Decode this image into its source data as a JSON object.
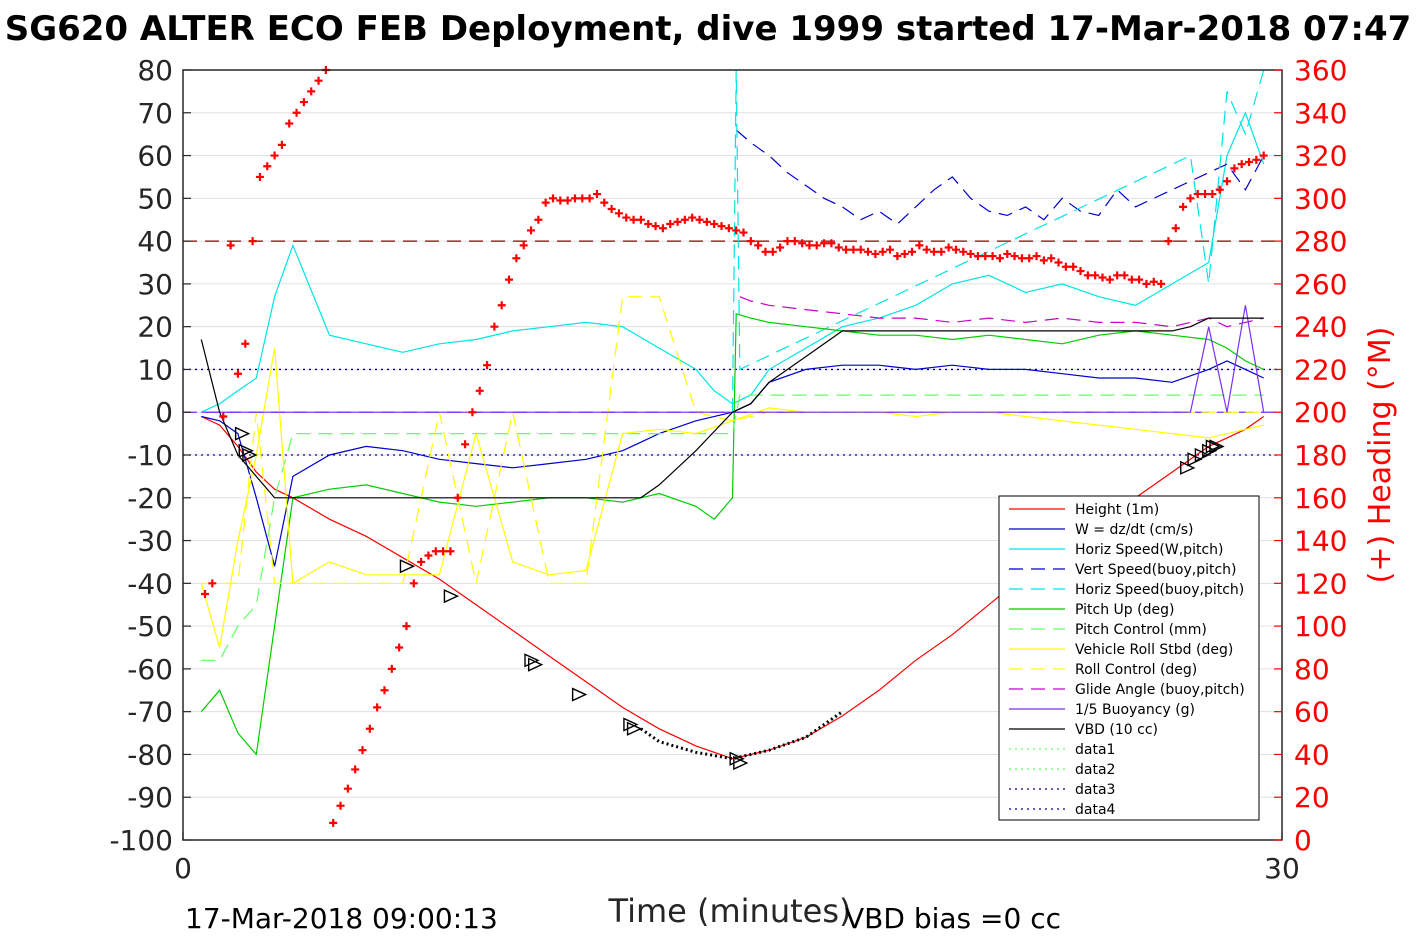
{
  "chart_data": {
    "type": "line",
    "title": "SG620 ALTER ECO FEB Deployment, dive 1999 started 17-Mar-2018 07:47",
    "xlabel": "Time (minutes)",
    "ylabel_right": "(+) Heading (°M)",
    "xlim": [
      0,
      30
    ],
    "ylim_left": [
      -100,
      80
    ],
    "ylim_right": [
      0,
      360
    ],
    "x_ticks": [
      "0",
      "30"
    ],
    "y_ticks_left": [
      "80",
      "70",
      "60",
      "50",
      "40",
      "30",
      "20",
      "10",
      "0",
      "-10",
      "-20",
      "-30",
      "-40",
      "-50",
      "-60",
      "-70",
      "-80",
      "-90",
      "-100"
    ],
    "y_ticks_right": [
      "360",
      "340",
      "320",
      "300",
      "280",
      "260",
      "240",
      "220",
      "200",
      "180",
      "160",
      "140",
      "120",
      "100",
      "80",
      "60",
      "40",
      "20",
      "0"
    ],
    "grid": true,
    "legend_position": "lower-right",
    "footer_left": "17-Mar-2018 09:00:13",
    "footer_right": "VBD bias =0 cc",
    "colors": {
      "red": "#ff0000",
      "blue": "#0000cc",
      "cyan": "#00e5e5",
      "green": "#00cc00",
      "yellow": "#ffff00",
      "magenta": "#cc00cc",
      "black": "#000000",
      "dark_red": "#8b0000",
      "light_green": "#66ff66",
      "navy": "#000080",
      "purple": "#7b2ff7"
    },
    "series": [
      {
        "name": "Height (1m)",
        "color": "red",
        "style": "solid",
        "x": [
          0.5,
          1,
          1.5,
          2,
          2.5,
          3,
          4,
          5,
          6,
          7,
          8,
          9,
          10,
          11,
          12,
          13,
          14,
          15,
          16,
          17,
          18,
          19,
          20,
          21,
          22,
          23,
          24,
          25,
          26,
          27,
          27.5,
          28,
          28.5,
          29,
          29.5
        ],
        "y": [
          -1,
          -3,
          -8,
          -14,
          -18,
          -20,
          -25,
          -29,
          -34,
          -39,
          -45,
          -51,
          -57,
          -63,
          -69,
          -74,
          -78,
          -81,
          -79,
          -76,
          -71,
          -65,
          -58,
          -52,
          -45,
          -38,
          -31,
          -26,
          -20,
          -14,
          -11,
          -8,
          -6,
          -4,
          -1
        ]
      },
      {
        "name": "W = dz/dt (cm/s)",
        "color": "blue",
        "style": "solid",
        "x": [
          0.5,
          1,
          1.5,
          2,
          2.5,
          3,
          4,
          5,
          6,
          7,
          8,
          9,
          10,
          11,
          12,
          13,
          14,
          15,
          15.5,
          16,
          17,
          18,
          19,
          20,
          21,
          22,
          23,
          24,
          25,
          26,
          27,
          28,
          28.5,
          29,
          29.5
        ],
        "y": [
          -1,
          -2,
          -5,
          -20,
          -36,
          -15,
          -10,
          -8,
          -9,
          -11,
          -12,
          -13,
          -12,
          -11,
          -9,
          -5,
          -2,
          0,
          2,
          7,
          10,
          11,
          11,
          10,
          11,
          10,
          10,
          9,
          8,
          8,
          7,
          10,
          12,
          10,
          8
        ]
      },
      {
        "name": "Horiz Speed(W,pitch)",
        "color": "cyan",
        "style": "solid",
        "x": [
          0.5,
          1,
          1.5,
          2,
          2.5,
          3,
          4,
          5,
          6,
          7,
          8,
          9,
          10,
          11,
          12,
          13,
          14,
          14.5,
          15,
          15.5,
          16,
          17,
          18,
          19,
          20,
          21,
          22,
          23,
          24,
          25,
          26,
          27,
          28,
          28.5,
          29,
          29.5
        ],
        "y": [
          0,
          2,
          5,
          8,
          27,
          39,
          18,
          16,
          14,
          16,
          17,
          19,
          20,
          21,
          20,
          15,
          10,
          5,
          2,
          4,
          10,
          15,
          20,
          22,
          25,
          30,
          32,
          28,
          30,
          27,
          25,
          30,
          35,
          60,
          70,
          58
        ]
      },
      {
        "name": "Vert Speed(buoy,pitch)",
        "color": "blue",
        "style": "dashed",
        "x": [
          15.1,
          15.5,
          16,
          16.5,
          17,
          17.5,
          18,
          18.5,
          19,
          19.5,
          20,
          20.5,
          21,
          21.5,
          22,
          22.5,
          23,
          23.5,
          24,
          24.5,
          25,
          25.5,
          26,
          26.5,
          27,
          27.5,
          28,
          28.5,
          29,
          29.5
        ],
        "y": [
          66,
          63,
          60,
          56,
          53,
          50,
          48,
          45,
          47,
          44,
          48,
          52,
          55,
          50,
          47,
          46,
          48,
          45,
          50,
          47,
          46,
          52,
          48,
          50,
          52,
          54,
          56,
          58,
          52,
          60
        ]
      },
      {
        "name": "Horiz Speed(buoy,pitch)",
        "color": "cyan",
        "style": "dashed",
        "x": [
          15,
          15.1,
          15.2,
          27.5,
          28,
          28.5,
          29,
          29.5
        ],
        "y": [
          0,
          80,
          10,
          60,
          30,
          75,
          65,
          80
        ]
      },
      {
        "name": "Pitch Up (deg)",
        "color": "green",
        "style": "solid",
        "x": [
          0.5,
          1,
          1.5,
          2,
          2.5,
          3,
          4,
          5,
          6,
          7,
          8,
          9,
          10,
          11,
          12,
          13,
          14,
          14.5,
          15,
          15.1,
          15.5,
          16,
          17,
          18,
          19,
          20,
          21,
          22,
          23,
          24,
          25,
          26,
          27,
          28,
          28.5,
          29,
          29.5
        ],
        "y": [
          -70,
          -65,
          -75,
          -80,
          -50,
          -20,
          -18,
          -17,
          -19,
          -21,
          -22,
          -21,
          -20,
          -20,
          -21,
          -19,
          -22,
          -25,
          -20,
          23,
          22,
          21,
          20,
          19,
          18,
          18,
          17,
          18,
          17,
          16,
          18,
          19,
          18,
          17,
          15,
          12,
          10
        ]
      },
      {
        "name": "Pitch Control (mm)",
        "color": "light_green",
        "style": "dashed",
        "x": [
          0.5,
          1,
          1.5,
          2,
          2.5,
          3,
          14.5,
          15,
          15.2,
          28,
          29.5
        ],
        "y": [
          -58,
          -58,
          -50,
          -45,
          -20,
          -5,
          -5,
          -5,
          4,
          4,
          4
        ]
      },
      {
        "name": "Vehicle Roll Stbd (deg)",
        "color": "yellow",
        "style": "solid",
        "x": [
          0.5,
          1,
          1.5,
          2,
          2.5,
          3,
          4,
          5,
          6,
          7,
          8,
          9,
          10,
          11,
          12,
          13,
          14,
          15,
          16,
          17,
          18,
          19,
          20,
          21,
          22,
          23,
          24,
          25,
          26,
          27,
          28,
          29,
          29.5
        ],
        "y": [
          -40,
          -55,
          -30,
          -10,
          15,
          -40,
          -35,
          -38,
          -38,
          -38,
          -5,
          -35,
          -38,
          -37,
          -5,
          -4,
          -5,
          -2,
          1,
          0,
          0,
          0,
          -1,
          0,
          0,
          -1,
          -2,
          -3,
          -4,
          -5,
          -6,
          -4,
          -3
        ]
      },
      {
        "name": "Roll Control (deg)",
        "color": "yellow",
        "style": "dashed",
        "x": [
          0.5,
          1,
          1.5,
          2,
          2.5,
          3,
          4,
          5,
          6,
          7,
          8,
          9,
          10,
          11,
          12,
          13,
          14,
          15,
          16,
          28,
          29.5
        ],
        "y": [
          -40,
          -40,
          -40,
          0,
          -40,
          -40,
          -40,
          -40,
          -40,
          0,
          -40,
          0,
          -40,
          -40,
          27,
          27,
          0,
          -2,
          0,
          0,
          0
        ]
      },
      {
        "name": "Glide Angle (buoy,pitch)",
        "color": "magenta",
        "style": "dashed",
        "x": [
          15.2,
          15.5,
          16,
          17,
          18,
          19,
          20,
          21,
          22,
          23,
          24,
          25,
          26,
          27,
          28,
          28.5,
          29,
          29.5
        ],
        "y": [
          27,
          26,
          25,
          24,
          23,
          22,
          22,
          21,
          22,
          21,
          22,
          21,
          21,
          20,
          22,
          20,
          21,
          22
        ]
      },
      {
        "name": "1/5 Buoyancy (g)",
        "color": "purple",
        "style": "solid",
        "x": [
          0.5,
          27.5,
          28,
          28.5,
          29,
          29.5
        ],
        "y": [
          0,
          0,
          20,
          0,
          25,
          0
        ]
      },
      {
        "name": "VBD (10 cc)",
        "color": "black",
        "style": "solid",
        "x": [
          0.5,
          1,
          1.5,
          2,
          2.5,
          3,
          12.5,
          13,
          14,
          15,
          15.5,
          16,
          17,
          18,
          19,
          20,
          21,
          22,
          23,
          24,
          25,
          26,
          27,
          27.5,
          28,
          29.5
        ],
        "y": [
          17,
          0,
          -10,
          -15,
          -20,
          -20,
          -20,
          -17,
          -9,
          0,
          2,
          7,
          13,
          19,
          19,
          19,
          19,
          19,
          19,
          19,
          19,
          19,
          19,
          20,
          22,
          22
        ]
      },
      {
        "name": "data1",
        "color": "light_green",
        "style": "dotted",
        "x": [
          0,
          30
        ],
        "y": [
          40,
          40
        ]
      },
      {
        "name": "data2",
        "color": "light_green",
        "style": "dotted",
        "x": [
          0,
          30
        ],
        "y": [
          10,
          10
        ]
      },
      {
        "name": "data3",
        "color": "navy",
        "style": "dotted",
        "x": [
          0,
          30
        ],
        "y": [
          10,
          10
        ]
      },
      {
        "name": "data4",
        "color": "navy",
        "style": "dotted",
        "x": [
          0,
          30
        ],
        "y": [
          -10,
          -10
        ]
      }
    ],
    "heading_points": {
      "color": "red",
      "axis": "right",
      "x": [
        0.6,
        0.8,
        1.1,
        1.3,
        1.5,
        1.7,
        1.9,
        2.1,
        2.3,
        2.5,
        2.7,
        2.9,
        3.1,
        3.3,
        3.5,
        3.7,
        3.9,
        4.1,
        4.3,
        4.5,
        4.7,
        4.9,
        5.1,
        5.3,
        5.5,
        5.7,
        5.9,
        6.1,
        6.3,
        6.5,
        6.7,
        6.9,
        7.1,
        7.3,
        7.5,
        7.7,
        7.9,
        8.1,
        8.3,
        8.5,
        8.7,
        8.9,
        9.1,
        9.3,
        9.5,
        9.7,
        9.9,
        10.1,
        10.3,
        10.5,
        10.7,
        10.9,
        11.1,
        11.3,
        11.5,
        11.7,
        11.9,
        12.1,
        12.3,
        12.5,
        12.7,
        12.9,
        13.1,
        13.3,
        13.5,
        13.7,
        13.9,
        14.1,
        14.3,
        14.5,
        14.7,
        14.9,
        15.1,
        15.3,
        15.5,
        15.7,
        15.9,
        16.1,
        16.3,
        16.5,
        16.7,
        16.9,
        17.1,
        17.3,
        17.5,
        17.7,
        17.9,
        18.1,
        18.3,
        18.5,
        18.7,
        18.9,
        19.1,
        19.3,
        19.5,
        19.7,
        19.9,
        20.1,
        20.3,
        20.5,
        20.7,
        20.9,
        21.1,
        21.3,
        21.5,
        21.7,
        21.9,
        22.1,
        22.3,
        22.5,
        22.7,
        22.9,
        23.1,
        23.3,
        23.5,
        23.7,
        23.9,
        24.1,
        24.3,
        24.5,
        24.7,
        24.9,
        25.1,
        25.3,
        25.5,
        25.7,
        25.9,
        26.1,
        26.3,
        26.5,
        26.7,
        26.9,
        27.1,
        27.3,
        27.5,
        27.7,
        27.9,
        28.1,
        28.3,
        28.5,
        28.7,
        28.9,
        29.1,
        29.3,
        29.5
      ],
      "y": [
        115,
        120,
        198,
        278,
        218,
        232,
        280,
        310,
        315,
        320,
        325,
        335,
        340,
        345,
        350,
        355,
        360,
        8,
        16,
        24,
        33,
        42,
        52,
        62,
        70,
        80,
        90,
        100,
        120,
        130,
        133,
        135,
        135,
        135,
        160,
        185,
        200,
        210,
        222,
        240,
        250,
        262,
        272,
        278,
        285,
        290,
        298,
        300,
        299,
        299,
        300,
        300,
        300,
        302,
        298,
        295,
        293,
        291,
        290,
        290,
        288,
        287,
        286,
        288,
        289,
        290,
        291,
        290,
        289,
        288,
        287,
        286,
        285,
        284,
        280,
        278,
        275,
        275,
        277,
        280,
        280,
        279,
        278,
        278,
        279,
        279,
        277,
        276,
        276,
        276,
        275,
        274,
        275,
        276,
        273,
        274,
        275,
        278,
        276,
        275,
        275,
        277,
        276,
        275,
        274,
        273,
        273,
        273,
        272,
        274,
        273,
        272,
        272,
        273,
        271,
        272,
        270,
        268,
        268,
        266,
        264,
        264,
        263,
        262,
        264,
        264,
        262,
        262,
        260,
        261,
        260,
        280,
        286,
        296,
        300,
        302,
        302,
        302,
        304,
        308,
        314,
        316,
        317,
        318,
        320
      ]
    },
    "triangle_markers": {
      "color": "black",
      "x": [
        1.6,
        1.7,
        1.8,
        6.1,
        7.3,
        9.5,
        9.6,
        10.8,
        12.2,
        12.3,
        15.1,
        15.2,
        27.4,
        27.6,
        27.8,
        28.0,
        28.1,
        28.2
      ],
      "y": [
        -5,
        -9,
        -10,
        -36,
        -43,
        -58,
        -59,
        -66,
        -73,
        -74,
        -81,
        -82,
        -13,
        -11,
        -10,
        -9,
        -8,
        -8
      ]
    },
    "dotted_segment": {
      "color": "black",
      "x": [
        12.5,
        13,
        14,
        15,
        16,
        17,
        18
      ],
      "y": [
        -74,
        -77,
        -79.5,
        -81,
        -79,
        -76,
        -70
      ]
    },
    "reference_lines": [
      {
        "color": "dark_red",
        "style": "dashed",
        "y": 40
      },
      {
        "color": "navy",
        "style": "dotted",
        "y": 10
      },
      {
        "color": "navy",
        "style": "dotted",
        "y": -10
      },
      {
        "color": "purple",
        "style": "dashed",
        "y": 0
      }
    ]
  }
}
